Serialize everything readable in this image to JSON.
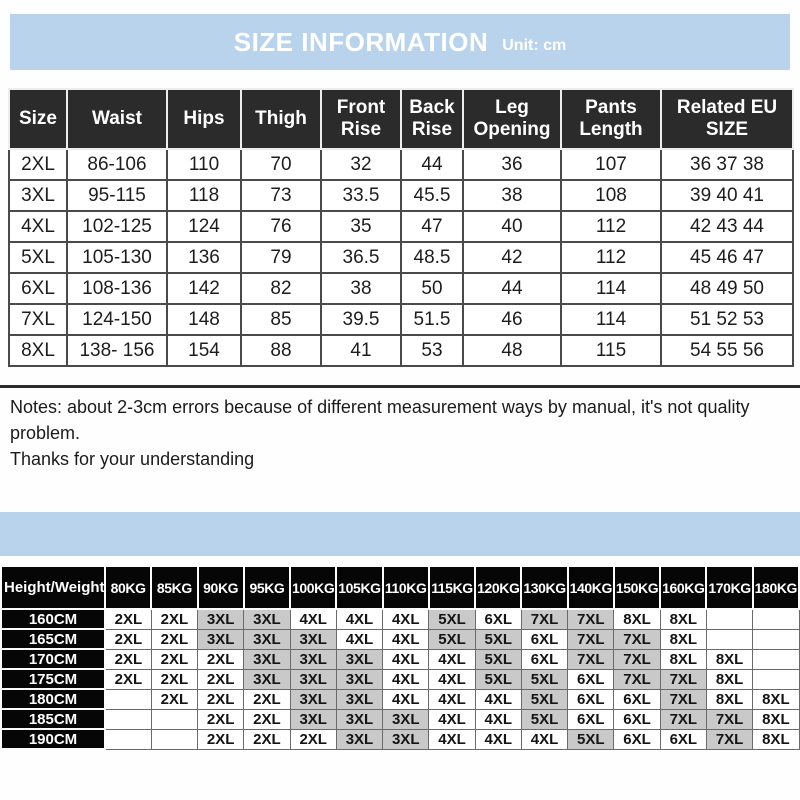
{
  "banner": {
    "title": "SIZE INFORMATION",
    "unit_label": "Unit: cm"
  },
  "colors": {
    "banner_bg": "#b9d3ec",
    "table1_header_bg": "#2b2b2b",
    "table2_header_bg": "#060606",
    "gray_cell_bg": "#c9c9c9",
    "banner_text": "#ffffff"
  },
  "size_table": {
    "columns": [
      "Size",
      "Waist",
      "Hips",
      "Thigh",
      "Front Rise",
      "Back Rise",
      "Leg Opening",
      "Pants Length",
      "Related EU SIZE"
    ],
    "rows": [
      [
        "2XL",
        "86-106",
        "110",
        "70",
        "32",
        "44",
        "36",
        "107",
        "36 37 38"
      ],
      [
        "3XL",
        "95-115",
        "118",
        "73",
        "33.5",
        "45.5",
        "38",
        "108",
        "39 40 41"
      ],
      [
        "4XL",
        "102-125",
        "124",
        "76",
        "35",
        "47",
        "40",
        "112",
        "42 43 44"
      ],
      [
        "5XL",
        "105-130",
        "136",
        "79",
        "36.5",
        "48.5",
        "42",
        "112",
        "45 46 47"
      ],
      [
        "6XL",
        "108-136",
        "142",
        "82",
        "38",
        "50",
        "44",
        "114",
        "48 49 50"
      ],
      [
        "7XL",
        "124-150",
        "148",
        "85",
        "39.5",
        "51.5",
        "46",
        "114",
        "51 52 53"
      ],
      [
        "8XL",
        "138- 156",
        "154",
        "88",
        "41",
        "53",
        "48",
        "115",
        "54 55 56"
      ]
    ]
  },
  "notes": {
    "lines": [
      "Notes: about 2-3cm errors because of different measurement ways by manual, it's not quality",
      "problem.",
      "Thanks for your understanding"
    ]
  },
  "height_weight_table": {
    "corner_label": "Height/Weight",
    "weight_columns": [
      "80KG",
      "85KG",
      "90KG",
      "95KG",
      "100KG",
      "105KG",
      "110KG",
      "115KG",
      "120KG",
      "130KG",
      "140KG",
      "150KG",
      "160KG",
      "170KG",
      "180KG"
    ],
    "gray_sizes": [
      "3XL",
      "5XL",
      "7XL"
    ],
    "rows": [
      {
        "height": "160CM",
        "sizes": [
          "2XL",
          "2XL",
          "3XL",
          "3XL",
          "4XL",
          "4XL",
          "4XL",
          "5XL",
          "6XL",
          "7XL",
          "7XL",
          "8XL",
          "8XL",
          "",
          ""
        ]
      },
      {
        "height": "165CM",
        "sizes": [
          "2XL",
          "2XL",
          "3XL",
          "3XL",
          "3XL",
          "4XL",
          "4XL",
          "5XL",
          "5XL",
          "6XL",
          "7XL",
          "7XL",
          "8XL",
          "",
          ""
        ]
      },
      {
        "height": "170CM",
        "sizes": [
          "2XL",
          "2XL",
          "2XL",
          "3XL",
          "3XL",
          "3XL",
          "4XL",
          "4XL",
          "5XL",
          "6XL",
          "7XL",
          "7XL",
          "8XL",
          "8XL",
          ""
        ]
      },
      {
        "height": "175CM",
        "sizes": [
          "2XL",
          "2XL",
          "2XL",
          "3XL",
          "3XL",
          "3XL",
          "4XL",
          "4XL",
          "5XL",
          "5XL",
          "6XL",
          "7XL",
          "7XL",
          "8XL",
          ""
        ]
      },
      {
        "height": "180CM",
        "sizes": [
          "",
          "2XL",
          "2XL",
          "2XL",
          "3XL",
          "3XL",
          "4XL",
          "4XL",
          "4XL",
          "5XL",
          "6XL",
          "6XL",
          "7XL",
          "8XL",
          "8XL"
        ]
      },
      {
        "height": "185CM",
        "sizes": [
          "",
          "",
          "2XL",
          "2XL",
          "3XL",
          "3XL",
          "3XL",
          "4XL",
          "4XL",
          "5XL",
          "6XL",
          "6XL",
          "7XL",
          "7XL",
          "8XL"
        ]
      },
      {
        "height": "190CM",
        "sizes": [
          "",
          "",
          "2XL",
          "2XL",
          "2XL",
          "3XL",
          "3XL",
          "4XL",
          "4XL",
          "4XL",
          "5XL",
          "6XL",
          "6XL",
          "7XL",
          "8XL"
        ]
      }
    ]
  }
}
